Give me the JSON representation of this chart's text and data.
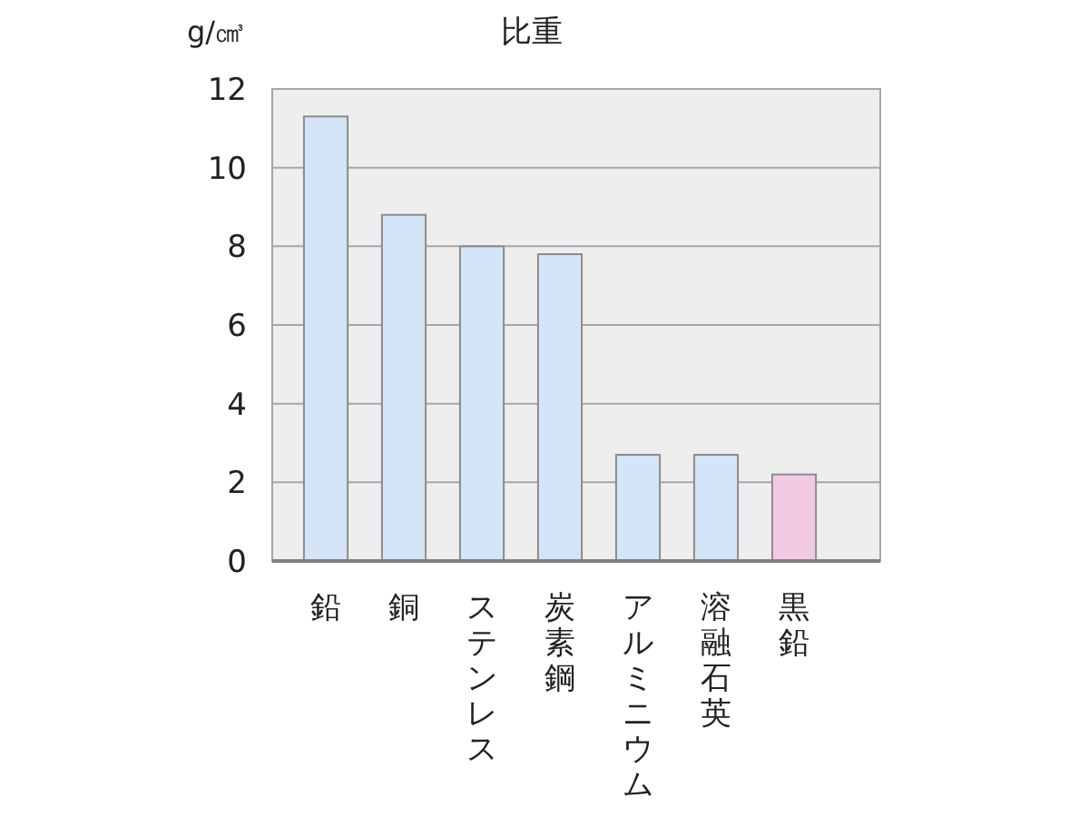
{
  "chart_data": {
    "type": "bar",
    "title": "比重",
    "ylabel": "g/㎤",
    "categories": [
      "鉛",
      "銅",
      "ステンレス",
      "炭素鋼",
      "アルミニウム",
      "溶融石英",
      "黒鉛"
    ],
    "values": [
      11.3,
      8.8,
      8.0,
      7.8,
      2.7,
      2.7,
      2.2
    ],
    "colors": [
      "#d3e5f6",
      "#d3e5f6",
      "#d3e5f6",
      "#d3e5f6",
      "#d3e5f6",
      "#d3e5f6",
      "#f2c9e2"
    ],
    "ylim": [
      0,
      12
    ],
    "yticks": [
      0,
      2,
      4,
      6,
      8,
      10,
      12
    ],
    "grid": "y"
  }
}
